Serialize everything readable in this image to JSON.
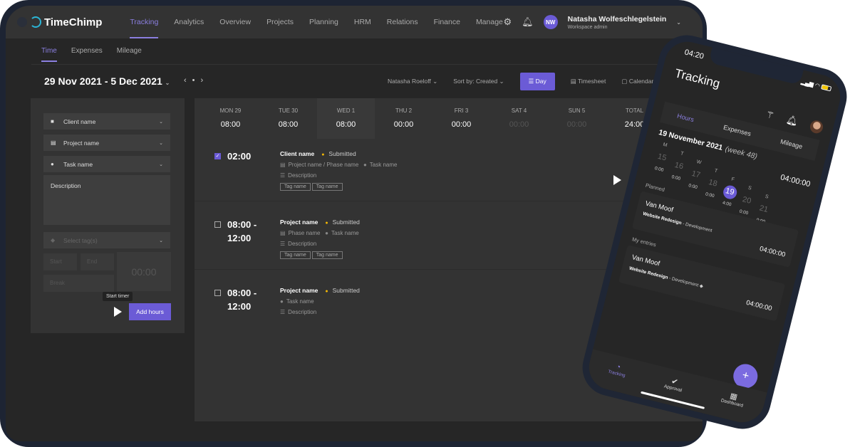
{
  "app": {
    "name": "TimeChimp",
    "nav": [
      "Tracking",
      "Analytics",
      "Overview",
      "Projects",
      "Planning",
      "HRM",
      "Relations",
      "Finance",
      "Manage"
    ],
    "active_nav": "Tracking",
    "user": {
      "initials": "NW",
      "name": "Natasha Wolfeschlegelstein",
      "role": "Workspace admin"
    }
  },
  "subnav": [
    "Time",
    "Expenses",
    "Mileage"
  ],
  "toolbar": {
    "date_range": "29 Nov 2021 - 5 Dec 2021",
    "user_filter": "Natasha Roeloff",
    "sort": "Sort by: Created",
    "views": [
      "Day",
      "Timesheet",
      "Calendar"
    ]
  },
  "form": {
    "client": "Client name",
    "project": "Project name",
    "task": "Task name",
    "description": "Description",
    "tags_placeholder": "Select tag(s)",
    "start_placeholder": "Start",
    "end_placeholder": "End",
    "break_placeholder": "Break",
    "timer": "00:00",
    "tooltip": "Start timer",
    "add_button": "Add hours"
  },
  "days": [
    {
      "label": "MON 29",
      "value": "08:00"
    },
    {
      "label": "TUE 30",
      "value": "08:00"
    },
    {
      "label": "WED 1",
      "value": "08:00"
    },
    {
      "label": "THU 2",
      "value": "00:00"
    },
    {
      "label": "FRI 3",
      "value": "00:00"
    },
    {
      "label": "SAT 4",
      "value": "00:00"
    },
    {
      "label": "SUN 5",
      "value": "00:00"
    },
    {
      "label": "TOTAL",
      "value": "24:00"
    }
  ],
  "entries": [
    {
      "checked": true,
      "time": "02:00",
      "title": "Client name",
      "status": "Submitted",
      "line1": "Project name / Phase name",
      "task": "Task name",
      "description": "Description",
      "tags": [
        "Tag name",
        "Tag name"
      ]
    },
    {
      "checked": false,
      "time": "08:00 - 12:00",
      "title": "Project name",
      "status": "Submitted",
      "line1": "Phase name",
      "task": "Task name",
      "description": "Description",
      "tags": [
        "Tag name",
        "Tag name"
      ]
    },
    {
      "checked": false,
      "time": "08:00 - 12:00",
      "title": "Project name",
      "status": "Submitted",
      "task": "Task name",
      "description": "Description"
    }
  ],
  "phone": {
    "time": "04:20",
    "title": "Tracking",
    "tabs": [
      "Hours",
      "Expenses",
      "Mileage"
    ],
    "date": "19 November 2021",
    "week": "(week 48)",
    "total": "04:00:00",
    "week_days": [
      {
        "l": "M",
        "n": "15",
        "h": "0:00"
      },
      {
        "l": "T",
        "n": "16",
        "h": "0:00"
      },
      {
        "l": "W",
        "n": "17",
        "h": "0:00"
      },
      {
        "l": "T",
        "n": "18",
        "h": "0:00"
      },
      {
        "l": "F",
        "n": "19",
        "h": "4:00"
      },
      {
        "l": "S",
        "n": "20",
        "h": "0:00"
      },
      {
        "l": "S",
        "n": "21",
        "h": "0:00"
      }
    ],
    "planned_label": "Planned",
    "planned": {
      "client": "Van Moof",
      "project": "Website Redesign",
      "task": "- Development",
      "value": "04:00:00"
    },
    "entries_label": "My entries",
    "entry": {
      "client": "Van Moof",
      "project": "Website Redesign",
      "task": "- Development",
      "value": "04:00:00"
    },
    "tabbar": [
      "Tracking",
      "Approval",
      "Dashboard"
    ],
    "fab": "+"
  },
  "colors": {
    "accent": "#6b5bd6",
    "status": "#f2b705"
  }
}
